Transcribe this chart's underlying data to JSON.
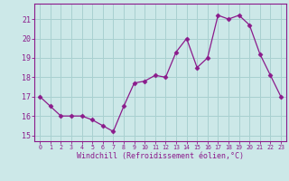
{
  "x": [
    0,
    1,
    2,
    3,
    4,
    5,
    6,
    7,
    8,
    9,
    10,
    11,
    12,
    13,
    14,
    15,
    16,
    17,
    18,
    19,
    20,
    21,
    22,
    23
  ],
  "y": [
    17.0,
    16.5,
    16.0,
    16.0,
    16.0,
    15.8,
    15.5,
    15.2,
    16.5,
    17.7,
    17.8,
    18.1,
    18.0,
    19.3,
    20.0,
    18.5,
    19.0,
    21.2,
    21.0,
    21.2,
    20.7,
    19.2,
    18.1,
    17.0
  ],
  "line_color": "#8b1a8b",
  "marker": "D",
  "marker_size": 2.5,
  "bg_color": "#cce8e8",
  "grid_color": "#a8d0d0",
  "axis_color": "#8b1a8b",
  "tick_color": "#8b1a8b",
  "xlabel": "Windchill (Refroidissement éolien,°C)",
  "ylim": [
    14.7,
    21.8
  ],
  "xlim": [
    -0.5,
    23.5
  ],
  "yticks": [
    15,
    16,
    17,
    18,
    19,
    20,
    21
  ],
  "xticks": [
    0,
    1,
    2,
    3,
    4,
    5,
    6,
    7,
    8,
    9,
    10,
    11,
    12,
    13,
    14,
    15,
    16,
    17,
    18,
    19,
    20,
    21,
    22,
    23
  ]
}
